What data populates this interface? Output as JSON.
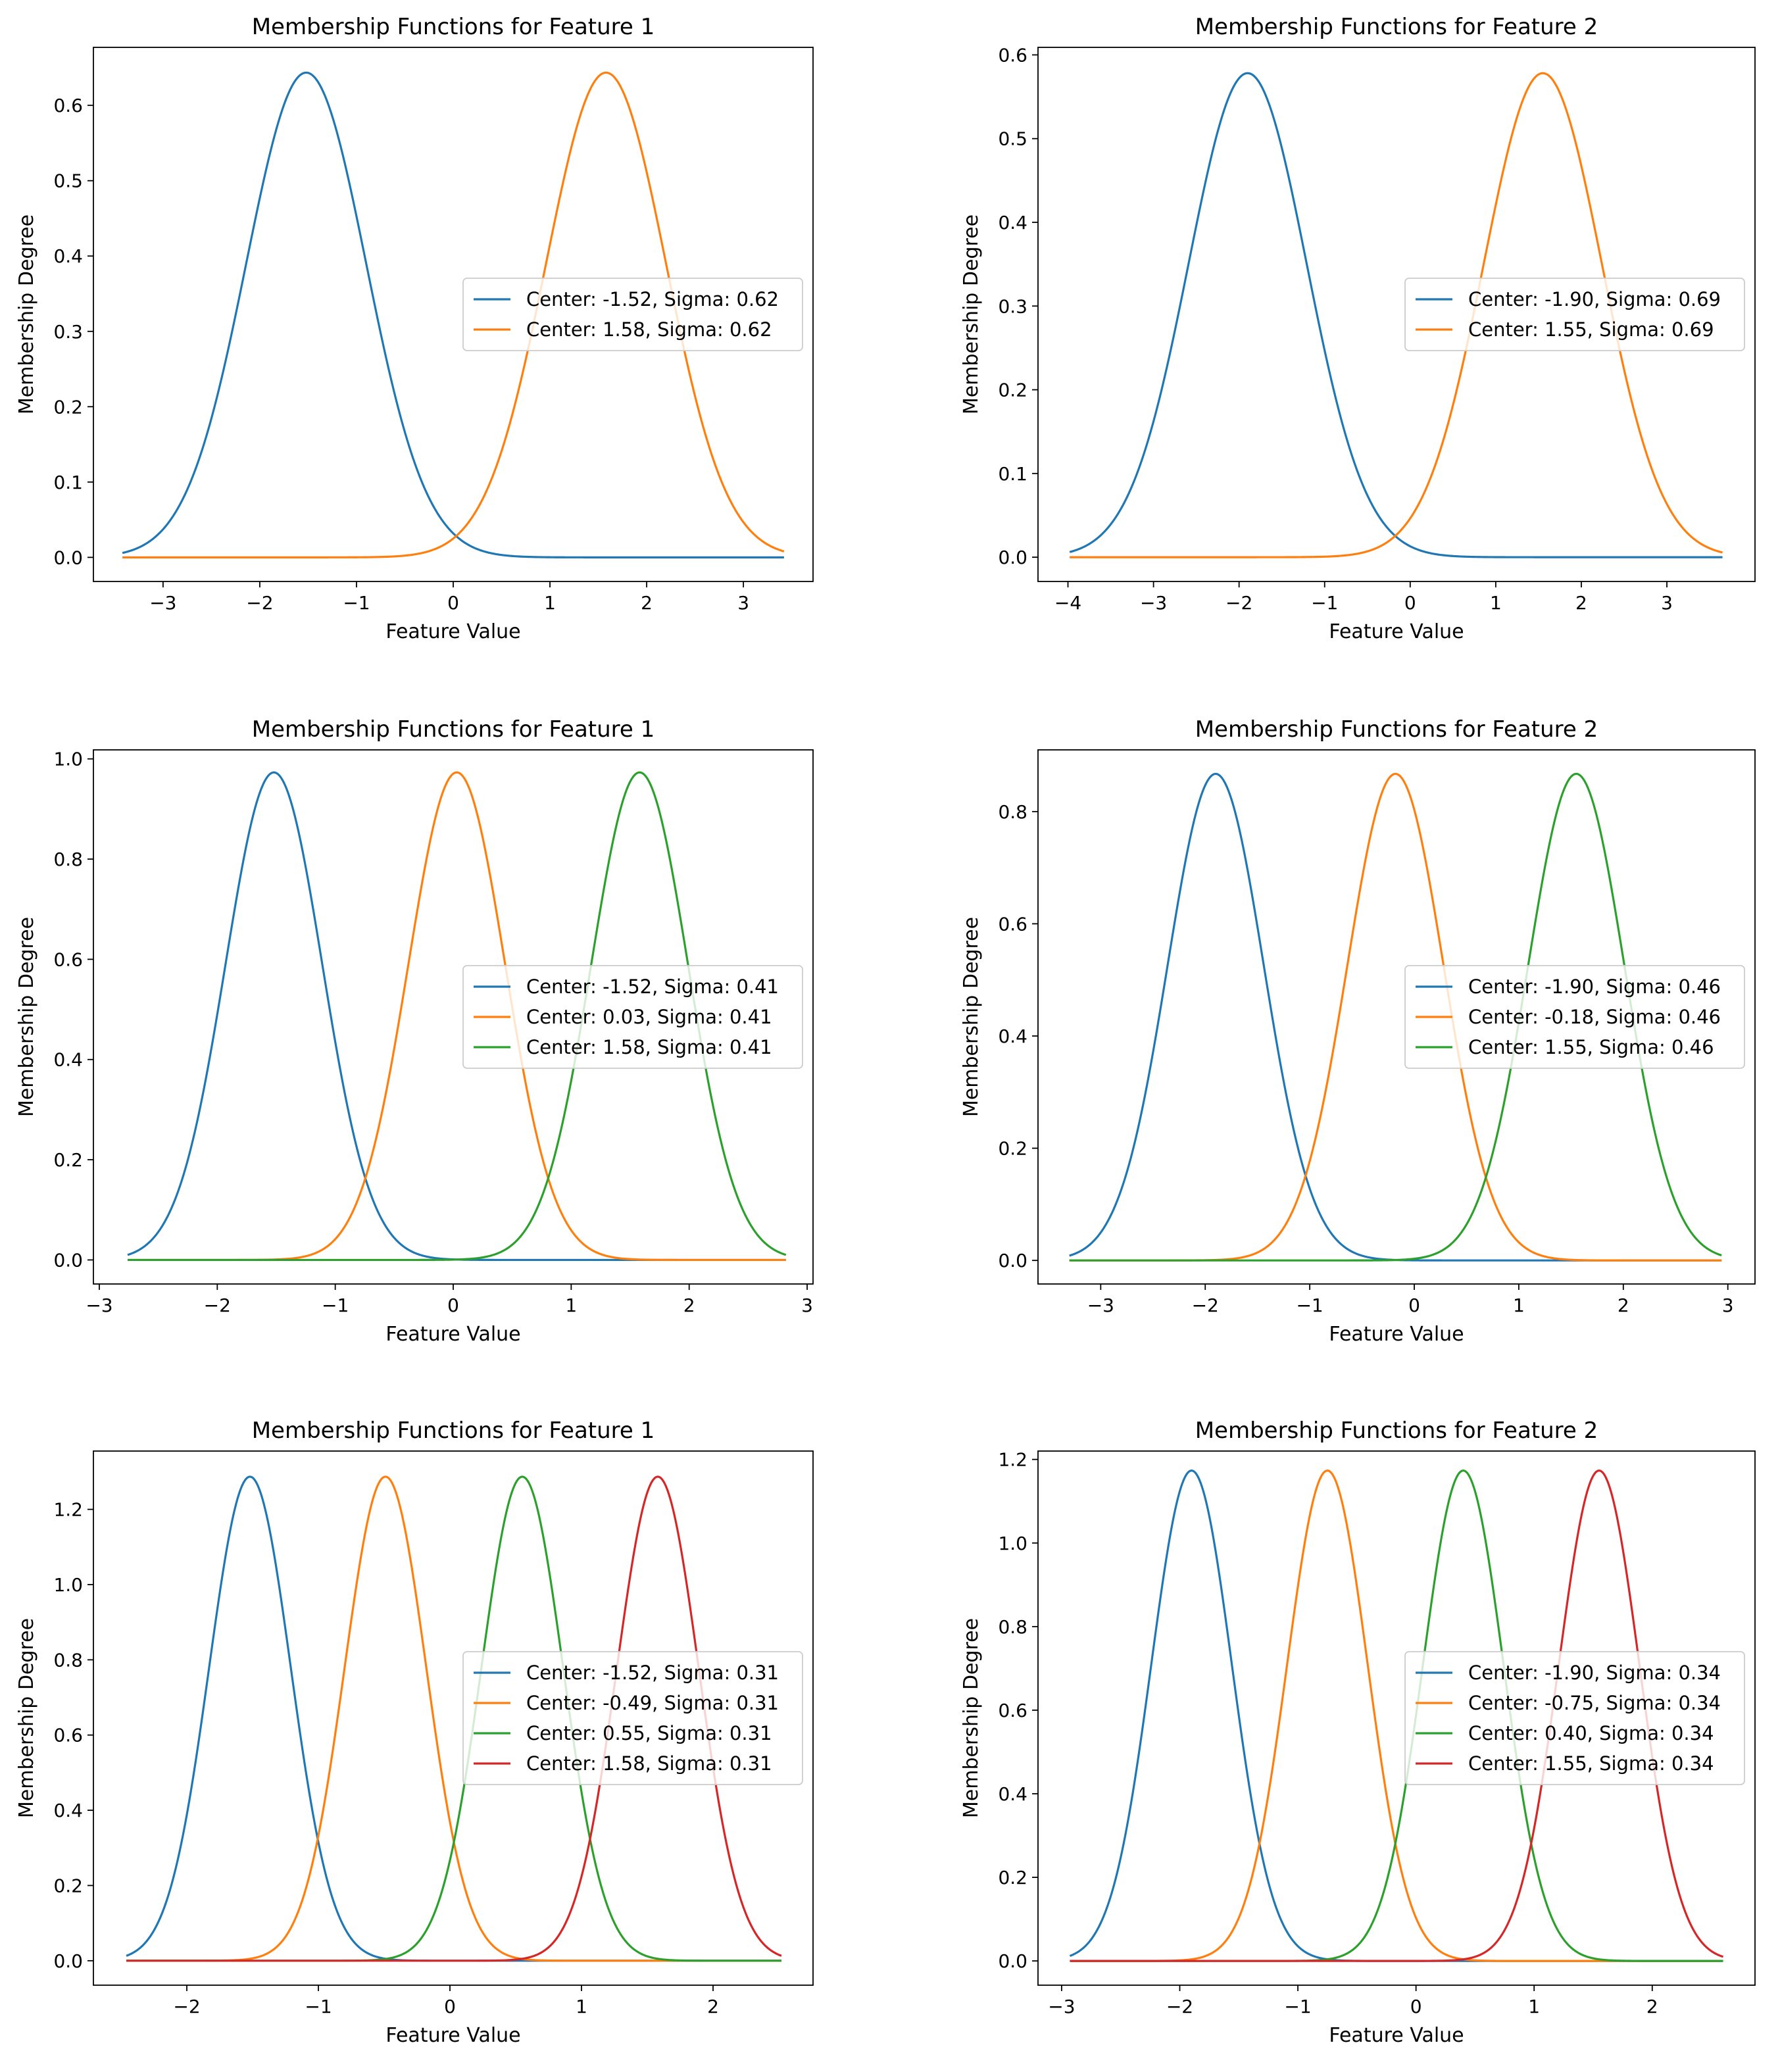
{
  "chart_data": [
    {
      "type": "line",
      "title": "Membership Functions for Feature 1",
      "xlabel": "Feature Value",
      "ylabel": "Membership Degree",
      "xlim": [
        -3.72,
        3.72
      ],
      "ylim": [
        -0.032,
        0.677
      ],
      "x_range": [
        -3.42,
        3.42
      ],
      "xticks": [
        -3,
        -2,
        -1,
        0,
        1,
        2,
        3
      ],
      "yticks": [
        0.0,
        0.1,
        0.2,
        0.3,
        0.4,
        0.5,
        0.6
      ],
      "ytick_decimals": 1,
      "legend_position": "center-right",
      "series": [
        {
          "name": "Center: -1.52, Sigma: 0.62",
          "center": -1.52,
          "sigma": 0.62,
          "color": "#1f77b4"
        },
        {
          "name": "Center: 1.58, Sigma: 0.62",
          "center": 1.58,
          "sigma": 0.62,
          "color": "#ff7f0e"
        }
      ]
    },
    {
      "type": "line",
      "title": "Membership Functions for Feature 2",
      "xlabel": "Feature Value",
      "ylabel": "Membership Degree",
      "xlim": [
        -4.35,
        4.03
      ],
      "ylim": [
        -0.029,
        0.609
      ],
      "x_range": [
        -3.98,
        3.65
      ],
      "xticks": [
        -4,
        -3,
        -2,
        -1,
        0,
        1,
        2,
        3
      ],
      "yticks": [
        0.0,
        0.1,
        0.2,
        0.3,
        0.4,
        0.5,
        0.6
      ],
      "ytick_decimals": 1,
      "legend_position": "center-right",
      "series": [
        {
          "name": "Center: -1.90, Sigma: 0.69",
          "center": -1.9,
          "sigma": 0.69,
          "color": "#1f77b4"
        },
        {
          "name": "Center: 1.55, Sigma: 0.69",
          "center": 1.55,
          "sigma": 0.69,
          "color": "#ff7f0e"
        }
      ]
    },
    {
      "type": "line",
      "title": "Membership Functions for Feature 1",
      "xlabel": "Feature Value",
      "ylabel": "Membership Degree",
      "xlim": [
        -3.05,
        3.05
      ],
      "ylim": [
        -0.048,
        1.018
      ],
      "x_range": [
        -2.76,
        2.82
      ],
      "xticks": [
        -3,
        -2,
        -1,
        0,
        1,
        2,
        3
      ],
      "yticks": [
        0.0,
        0.2,
        0.4,
        0.6,
        0.8,
        1.0
      ],
      "ytick_decimals": 1,
      "legend_position": "center-right",
      "series": [
        {
          "name": "Center: -1.52, Sigma: 0.41",
          "center": -1.52,
          "sigma": 0.41,
          "color": "#1f77b4"
        },
        {
          "name": "Center: 0.03, Sigma: 0.41",
          "center": 0.03,
          "sigma": 0.41,
          "color": "#ff7f0e"
        },
        {
          "name": "Center: 1.58, Sigma: 0.41",
          "center": 1.58,
          "sigma": 0.41,
          "color": "#2ca02c"
        }
      ]
    },
    {
      "type": "line",
      "title": "Membership Functions for Feature 2",
      "xlabel": "Feature Value",
      "ylabel": "Membership Degree",
      "xlim": [
        -3.6,
        3.26
      ],
      "ylim": [
        -0.042,
        0.91
      ],
      "x_range": [
        -3.3,
        2.94
      ],
      "xticks": [
        -3,
        -2,
        -1,
        0,
        1,
        2,
        3
      ],
      "yticks": [
        0.0,
        0.2,
        0.4,
        0.6,
        0.8
      ],
      "ytick_decimals": 1,
      "legend_position": "center-right",
      "series": [
        {
          "name": "Center: -1.90, Sigma: 0.46",
          "center": -1.9,
          "sigma": 0.46,
          "color": "#1f77b4"
        },
        {
          "name": "Center: -0.18, Sigma: 0.46",
          "center": -0.18,
          "sigma": 0.46,
          "color": "#ff7f0e"
        },
        {
          "name": "Center: 1.55, Sigma: 0.46",
          "center": 1.55,
          "sigma": 0.46,
          "color": "#2ca02c"
        }
      ]
    },
    {
      "type": "line",
      "title": "Membership Functions for Feature 1",
      "xlabel": "Feature Value",
      "ylabel": "Membership Degree",
      "xlim": [
        -2.71,
        2.76
      ],
      "ylim": [
        -0.065,
        1.355
      ],
      "x_range": [
        -2.46,
        2.52
      ],
      "xticks": [
        -2,
        -1,
        0,
        1,
        2
      ],
      "yticks": [
        0.0,
        0.2,
        0.4,
        0.6,
        0.8,
        1.0,
        1.2
      ],
      "ytick_decimals": 1,
      "legend_position": "center-right",
      "series": [
        {
          "name": "Center: -1.52, Sigma: 0.31",
          "center": -1.52,
          "sigma": 0.31,
          "color": "#1f77b4"
        },
        {
          "name": "Center: -0.49, Sigma: 0.31",
          "center": -0.49,
          "sigma": 0.31,
          "color": "#ff7f0e"
        },
        {
          "name": "Center: 0.55, Sigma: 0.31",
          "center": 0.55,
          "sigma": 0.31,
          "color": "#2ca02c"
        },
        {
          "name": "Center: 1.58, Sigma: 0.31",
          "center": 1.58,
          "sigma": 0.31,
          "color": "#d62728"
        }
      ]
    },
    {
      "type": "line",
      "title": "Membership Functions for Feature 2",
      "xlabel": "Feature Value",
      "ylabel": "Membership Degree",
      "xlim": [
        -3.2,
        2.87
      ],
      "ylim": [
        -0.058,
        1.22
      ],
      "x_range": [
        -2.93,
        2.6
      ],
      "xticks": [
        -3,
        -2,
        -1,
        0,
        1,
        2
      ],
      "yticks": [
        0.0,
        0.2,
        0.4,
        0.6,
        0.8,
        1.0,
        1.2
      ],
      "ytick_decimals": 1,
      "legend_position": "center-right",
      "series": [
        {
          "name": "Center: -1.90, Sigma: 0.34",
          "center": -1.9,
          "sigma": 0.34,
          "color": "#1f77b4"
        },
        {
          "name": "Center: -0.75, Sigma: 0.34",
          "center": -0.75,
          "sigma": 0.34,
          "color": "#ff7f0e"
        },
        {
          "name": "Center: 0.40, Sigma: 0.34",
          "center": 0.4,
          "sigma": 0.34,
          "color": "#2ca02c"
        },
        {
          "name": "Center: 1.55, Sigma: 0.34",
          "center": 1.55,
          "sigma": 0.34,
          "color": "#d62728"
        }
      ]
    }
  ]
}
